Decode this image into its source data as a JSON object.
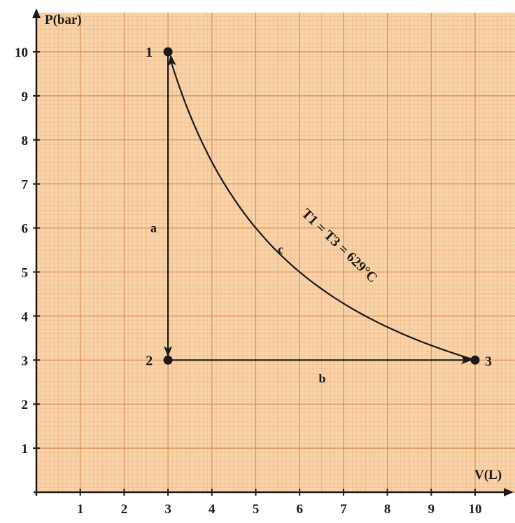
{
  "chart_data": {
    "type": "line",
    "xlabel": "V(L)",
    "ylabel": "P(bar)",
    "xlim": [
      0,
      10
    ],
    "ylim": [
      0,
      10
    ],
    "xticks": [
      1,
      2,
      3,
      4,
      5,
      6,
      7,
      8,
      9,
      10
    ],
    "yticks": [
      1,
      2,
      3,
      4,
      5,
      6,
      7,
      8,
      9,
      10
    ],
    "grid": true,
    "colors": {
      "background": "#f9d3a8",
      "grid_minor": "#ecb486",
      "grid_major": "#d98a52",
      "ink": "#1a1a1a"
    },
    "points": [
      {
        "label": "1",
        "x": 3,
        "y": 10
      },
      {
        "label": "2",
        "x": 3,
        "y": 3
      },
      {
        "label": "3",
        "x": 10,
        "y": 3
      }
    ],
    "paths": [
      {
        "label": "a",
        "from": "1",
        "to": "2",
        "kind": "isochoric"
      },
      {
        "label": "b",
        "from": "2",
        "to": "3",
        "kind": "isobaric"
      },
      {
        "label": "c",
        "from": "3",
        "to": "1",
        "kind": "isothermal",
        "pv_constant": 30
      }
    ],
    "annotation": "T1 = T3 = 629°C"
  }
}
